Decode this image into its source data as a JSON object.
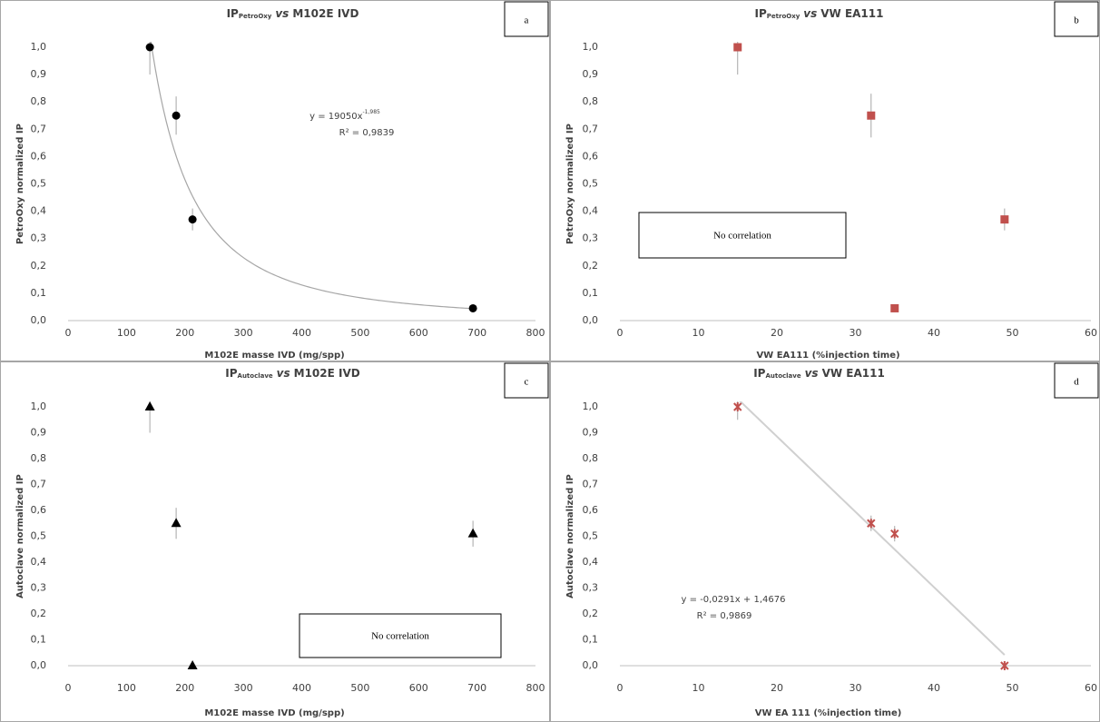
{
  "chart_data": [
    {
      "type": "scatter",
      "panel_label": "a",
      "title_parts": [
        "IP",
        "PetroOxy",
        "vs",
        "M102E IVD"
      ],
      "xlabel": "M102E masse IVD (mg/spp)",
      "ylabel": "PetroOxy normalized IP",
      "xlim": [
        0,
        800
      ],
      "xticks": [
        0,
        100,
        200,
        300,
        400,
        500,
        600,
        700,
        800
      ],
      "ylim": [
        0,
        1
      ],
      "yticks": [
        {
          "value": 0,
          "label": "0,0"
        },
        {
          "value": 0.1,
          "label": "0,1"
        },
        {
          "value": 0.2,
          "label": "0,2"
        },
        {
          "value": 0.3,
          "label": "0,3"
        },
        {
          "value": 0.4,
          "label": "0,4"
        },
        {
          "value": 0.5,
          "label": "0,5"
        },
        {
          "value": 0.6,
          "label": "0,6"
        },
        {
          "value": 0.7,
          "label": "0,7"
        },
        {
          "value": 0.8,
          "label": "0,8"
        },
        {
          "value": 0.9,
          "label": "0,9"
        },
        {
          "value": 1,
          "label": "1,0"
        }
      ],
      "x": [
        140,
        185,
        213,
        693
      ],
      "values": [
        1.0,
        0.75,
        0.37,
        0.045
      ],
      "errors": [
        0.1,
        0.07,
        0.04,
        0.01
      ],
      "marker": "circle",
      "color": "#000000",
      "trendline": {
        "kind": "power",
        "coef": 19050,
        "exponent": -1.985,
        "color": "#a6a6a6"
      },
      "equation": {
        "text": "y = 19050x",
        "exponent": "-1,985"
      },
      "r2": "R² = 0,9839"
    },
    {
      "type": "scatter",
      "panel_label": "b",
      "title_parts": [
        "IP",
        "PetroOxy",
        "vs",
        "VW EA111"
      ],
      "xlabel": "VW EA111 (%injection time)",
      "ylabel": "PetroOxy normalized IP",
      "xlim": [
        0,
        60
      ],
      "xticks": [
        0,
        10,
        20,
        30,
        40,
        50,
        60
      ],
      "ylim": [
        0,
        1
      ],
      "yticks": [
        {
          "value": 0,
          "label": "0,0"
        },
        {
          "value": 0.1,
          "label": "0,1"
        },
        {
          "value": 0.2,
          "label": "0,2"
        },
        {
          "value": 0.3,
          "label": "0,3"
        },
        {
          "value": 0.4,
          "label": "0,4"
        },
        {
          "value": 0.5,
          "label": "0,5"
        },
        {
          "value": 0.6,
          "label": "0,6"
        },
        {
          "value": 0.7,
          "label": "0,7"
        },
        {
          "value": 0.8,
          "label": "0,8"
        },
        {
          "value": 0.9,
          "label": "0,9"
        },
        {
          "value": 1,
          "label": "1,0"
        }
      ],
      "x": [
        15,
        32,
        49,
        35
      ],
      "values": [
        1.0,
        0.75,
        0.37,
        0.045
      ],
      "errors": [
        0.1,
        0.08,
        0.04,
        0.01
      ],
      "marker": "square",
      "color": "#c0504d",
      "note": "No correlation"
    },
    {
      "type": "scatter",
      "panel_label": "c",
      "title_parts": [
        "IP",
        "Autoclave",
        "vs",
        "M102E IVD"
      ],
      "xlabel": "M102E masse IVD (mg/spp)",
      "ylabel": "Autoclave normalized IP",
      "xlim": [
        0,
        800
      ],
      "xticks": [
        0,
        100,
        200,
        300,
        400,
        500,
        600,
        700,
        800
      ],
      "ylim": [
        0,
        1
      ],
      "yticks": [
        {
          "value": 0,
          "label": "0,0"
        },
        {
          "value": 0.1,
          "label": "0,1"
        },
        {
          "value": 0.2,
          "label": "0,2"
        },
        {
          "value": 0.3,
          "label": "0,3"
        },
        {
          "value": 0.4,
          "label": "0,4"
        },
        {
          "value": 0.5,
          "label": "0,5"
        },
        {
          "value": 0.6,
          "label": "0,6"
        },
        {
          "value": 0.7,
          "label": "0,7"
        },
        {
          "value": 0.8,
          "label": "0,8"
        },
        {
          "value": 0.9,
          "label": "0,9"
        },
        {
          "value": 1,
          "label": "1,0"
        }
      ],
      "x": [
        140,
        185,
        213,
        693
      ],
      "values": [
        1.0,
        0.55,
        0.0,
        0.51
      ],
      "errors": [
        0.1,
        0.06,
        0.01,
        0.05
      ],
      "marker": "triangle",
      "color": "#000000",
      "note": "No correlation"
    },
    {
      "type": "scatter",
      "panel_label": "d",
      "title_parts": [
        "IP",
        "Autoclave",
        "vs",
        "VW EA111"
      ],
      "xlabel": "VW EA 111 (%injection time)",
      "ylabel": "Autoclave normalized IP",
      "xlim": [
        0,
        60
      ],
      "xticks": [
        0,
        10,
        20,
        30,
        40,
        50,
        60
      ],
      "ylim": [
        0,
        1
      ],
      "yticks": [
        {
          "value": 0,
          "label": "0,0"
        },
        {
          "value": 0.1,
          "label": "0,1"
        },
        {
          "value": 0.2,
          "label": "0,2"
        },
        {
          "value": 0.3,
          "label": "0,3"
        },
        {
          "value": 0.4,
          "label": "0,4"
        },
        {
          "value": 0.5,
          "label": "0,5"
        },
        {
          "value": 0.6,
          "label": "0,6"
        },
        {
          "value": 0.7,
          "label": "0,7"
        },
        {
          "value": 0.8,
          "label": "0,8"
        },
        {
          "value": 0.9,
          "label": "0,9"
        },
        {
          "value": 1,
          "label": "1,0"
        }
      ],
      "x": [
        15,
        32,
        35,
        49
      ],
      "values": [
        1.0,
        0.55,
        0.51,
        0.0
      ],
      "errors": [
        0.05,
        0.03,
        0.03,
        0.01
      ],
      "marker": "star",
      "color": "#c0504d",
      "trendline": {
        "kind": "linear",
        "slope": -0.0291,
        "intercept": 1.4676,
        "color": "#d0d0d0"
      },
      "equation": {
        "text": "y = -0,0291x + 1,4676"
      },
      "r2": "R² = 0,9869"
    }
  ]
}
